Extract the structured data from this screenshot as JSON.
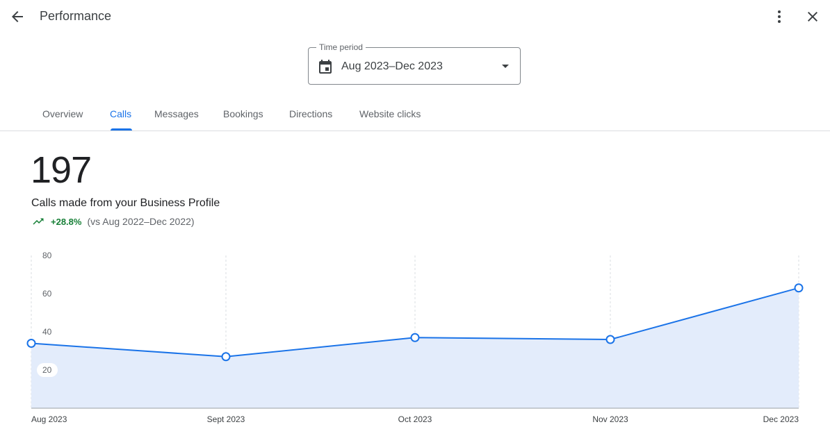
{
  "header": {
    "title": "Performance",
    "back_icon": "arrow-back-icon",
    "more_icon": "more-vert-icon",
    "close_icon": "close-icon"
  },
  "time_period": {
    "label": "Time period",
    "value": "Aug 2023–Dec 2023"
  },
  "tabs": [
    {
      "label": "Overview",
      "active": false
    },
    {
      "label": "Calls",
      "active": true
    },
    {
      "label": "Messages",
      "active": false
    },
    {
      "label": "Bookings",
      "active": false
    },
    {
      "label": "Directions",
      "active": false
    },
    {
      "label": "Website clicks",
      "active": false
    }
  ],
  "metric": {
    "total": "197",
    "description": "Calls made from your Business Profile",
    "change": "+28.8%",
    "comparison": "(vs Aug 2022–Dec 2022)"
  },
  "colors": {
    "accent": "#1a73e8",
    "positive": "#188038",
    "area_fill": "#e3ecfb"
  },
  "chart_data": {
    "type": "area",
    "categories": [
      "Aug 2023",
      "Sept 2023",
      "Oct 2023",
      "Nov 2023",
      "Dec 2023"
    ],
    "values": [
      34,
      27,
      37,
      36,
      63
    ],
    "ylim": [
      0,
      80
    ],
    "yticks": [
      20,
      40,
      60,
      80
    ],
    "grid": "vertical-dashed"
  }
}
